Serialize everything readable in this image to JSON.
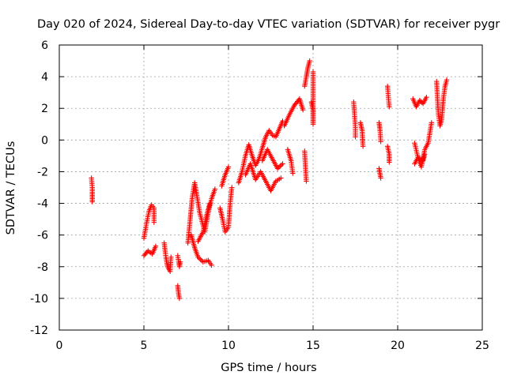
{
  "chart_data": {
    "type": "scatter",
    "title": "Day 020 of 2024, Sidereal Day-to-day VTEC variation (SDTVAR) for receiver pygr",
    "xlabel": "GPS time / hours",
    "ylabel": "SDTVAR / TECUs",
    "xlim": [
      0,
      25
    ],
    "ylim": [
      -12,
      6
    ],
    "xticks": [
      0,
      5,
      10,
      15,
      20,
      25
    ],
    "xtick_labels": [
      "0",
      "5",
      "10",
      "15",
      "20",
      "25"
    ],
    "yticks": [
      -12,
      -10,
      -8,
      -6,
      -4,
      -2,
      0,
      2,
      4,
      6
    ],
    "ytick_labels": [
      "-12",
      "-10",
      "-8",
      "-6",
      "-4",
      "-2",
      "0",
      "2",
      "4",
      "6"
    ],
    "grid": true,
    "marker": "+",
    "series": [
      {
        "name": "SDTVAR",
        "color": "#ff0000",
        "segments": [
          [
            [
              1.9,
              -2.4
            ],
            [
              1.95,
              -3.0
            ],
            [
              1.95,
              -3.5
            ],
            [
              1.95,
              -3.9
            ]
          ],
          [
            [
              5.0,
              -6.2
            ],
            [
              5.15,
              -5.3
            ],
            [
              5.3,
              -4.5
            ],
            [
              5.45,
              -4.1
            ],
            [
              5.6,
              -4.3
            ],
            [
              5.6,
              -5.2
            ]
          ],
          [
            [
              5.0,
              -7.3
            ],
            [
              5.25,
              -7.0
            ],
            [
              5.5,
              -7.2
            ],
            [
              5.7,
              -6.7
            ]
          ],
          [
            [
              6.2,
              -6.5
            ],
            [
              6.3,
              -7.4
            ],
            [
              6.4,
              -8.0
            ],
            [
              6.55,
              -8.3
            ],
            [
              6.6,
              -7.4
            ]
          ],
          [
            [
              7.0,
              -9.2
            ],
            [
              7.05,
              -9.7
            ],
            [
              7.1,
              -10.0
            ]
          ],
          [
            [
              7.0,
              -7.3
            ],
            [
              7.1,
              -8.0
            ],
            [
              7.15,
              -7.7
            ]
          ],
          [
            [
              7.6,
              -6.5
            ],
            [
              7.7,
              -5.4
            ],
            [
              7.85,
              -3.7
            ],
            [
              8.0,
              -2.7
            ],
            [
              8.1,
              -3.3
            ],
            [
              8.3,
              -4.6
            ],
            [
              8.6,
              -5.8
            ],
            [
              8.8,
              -4.6
            ],
            [
              9.0,
              -3.7
            ],
            [
              9.2,
              -3.1
            ]
          ],
          [
            [
              7.8,
              -6.0
            ],
            [
              8.0,
              -6.8
            ],
            [
              8.2,
              -7.4
            ],
            [
              8.5,
              -7.7
            ],
            [
              8.8,
              -7.6
            ],
            [
              9.0,
              -7.9
            ]
          ],
          [
            [
              8.2,
              -6.4
            ],
            [
              8.5,
              -5.8
            ],
            [
              8.7,
              -4.8
            ],
            [
              8.9,
              -4.0
            ]
          ],
          [
            [
              9.5,
              -4.3
            ],
            [
              9.65,
              -5.0
            ],
            [
              9.8,
              -5.8
            ],
            [
              10.0,
              -5.5
            ],
            [
              10.1,
              -4.0
            ],
            [
              10.2,
              -3.0
            ]
          ],
          [
            [
              9.6,
              -2.9
            ],
            [
              9.8,
              -2.2
            ],
            [
              10.0,
              -1.7
            ]
          ],
          [
            [
              10.6,
              -2.7
            ],
            [
              10.8,
              -2.0
            ],
            [
              11.0,
              -1.0
            ],
            [
              11.2,
              -0.3
            ],
            [
              11.4,
              -1.0
            ],
            [
              11.6,
              -1.6
            ],
            [
              11.8,
              -1.2
            ],
            [
              12.0,
              -0.5
            ],
            [
              12.2,
              0.2
            ],
            [
              12.4,
              0.6
            ],
            [
              12.6,
              0.3
            ],
            [
              12.8,
              0.2
            ],
            [
              13.0,
              0.7
            ],
            [
              13.2,
              1.2
            ]
          ],
          [
            [
              11.0,
              -2.2
            ],
            [
              11.3,
              -1.5
            ],
            [
              11.6,
              -2.5
            ],
            [
              11.9,
              -2.0
            ],
            [
              12.2,
              -2.6
            ],
            [
              12.5,
              -3.2
            ],
            [
              12.8,
              -2.6
            ],
            [
              13.1,
              -2.4
            ]
          ],
          [
            [
              12.0,
              -1.3
            ],
            [
              12.3,
              -0.6
            ],
            [
              12.6,
              -1.2
            ],
            [
              12.9,
              -1.8
            ],
            [
              13.2,
              -1.5
            ]
          ],
          [
            [
              13.3,
              0.9
            ],
            [
              13.6,
              1.6
            ],
            [
              13.9,
              2.2
            ],
            [
              14.2,
              2.6
            ],
            [
              14.4,
              1.9
            ]
          ],
          [
            [
              13.5,
              -0.6
            ],
            [
              13.7,
              -1.3
            ],
            [
              13.8,
              -2.1
            ]
          ],
          [
            [
              14.5,
              3.4
            ],
            [
              14.6,
              4.0
            ],
            [
              14.7,
              4.6
            ],
            [
              14.8,
              5.0
            ]
          ],
          [
            [
              14.5,
              -0.7
            ],
            [
              14.55,
              -1.7
            ],
            [
              14.6,
              -2.6
            ]
          ],
          [
            [
              14.9,
              2.4
            ],
            [
              15.0,
              1.9
            ],
            [
              15.0,
              1.0
            ],
            [
              15.0,
              4.3
            ]
          ],
          [
            [
              17.4,
              2.4
            ],
            [
              17.45,
              1.6
            ],
            [
              17.5,
              0.8
            ],
            [
              17.5,
              0.2
            ]
          ],
          [
            [
              17.8,
              1.1
            ],
            [
              17.9,
              0.6
            ],
            [
              17.95,
              -0.4
            ]
          ],
          [
            [
              18.9,
              1.1
            ],
            [
              18.95,
              0.7
            ],
            [
              19.0,
              -0.1
            ]
          ],
          [
            [
              18.9,
              -1.8
            ],
            [
              19.0,
              -2.4
            ]
          ],
          [
            [
              19.4,
              3.4
            ],
            [
              19.45,
              2.7
            ],
            [
              19.5,
              2.1
            ]
          ],
          [
            [
              19.4,
              -0.4
            ],
            [
              19.5,
              -0.9
            ],
            [
              19.5,
              -1.4
            ]
          ],
          [
            [
              20.9,
              2.6
            ],
            [
              21.1,
              2.1
            ],
            [
              21.3,
              2.5
            ],
            [
              21.5,
              2.3
            ],
            [
              21.7,
              2.7
            ]
          ],
          [
            [
              21.0,
              -0.2
            ],
            [
              21.2,
              -1.1
            ],
            [
              21.4,
              -1.7
            ],
            [
              21.6,
              -0.6
            ],
            [
              21.8,
              -0.2
            ],
            [
              22.0,
              1.1
            ]
          ],
          [
            [
              21.0,
              -1.5
            ],
            [
              21.2,
              -1.1
            ],
            [
              21.5,
              -1.3
            ],
            [
              21.6,
              -0.9
            ]
          ],
          [
            [
              22.3,
              3.7
            ],
            [
              22.4,
              1.7
            ],
            [
              22.5,
              0.9
            ],
            [
              22.6,
              1.3
            ],
            [
              22.7,
              2.6
            ],
            [
              22.8,
              3.4
            ],
            [
              22.9,
              3.8
            ]
          ]
        ]
      }
    ]
  }
}
